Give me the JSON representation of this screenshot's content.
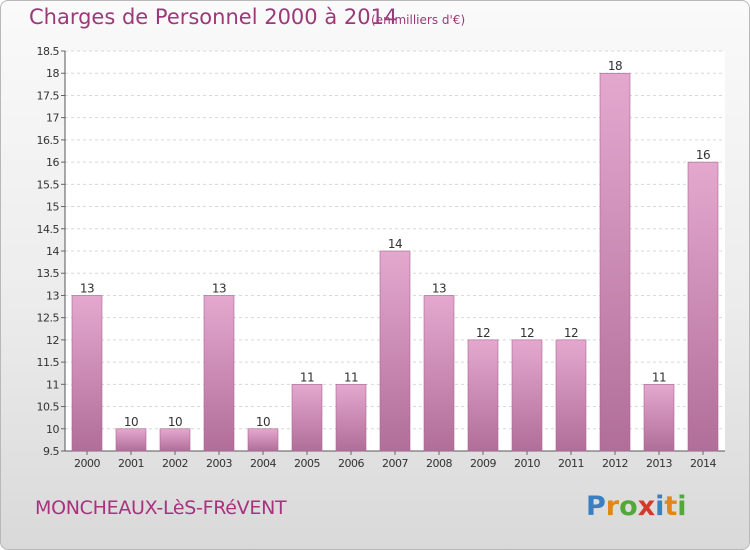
{
  "title": "Charges de Personnel 2000 à 2014",
  "subtitle": "(en milliers d'€)",
  "city": "MONCHEAUX-LèS-FRéVENT",
  "brand": {
    "text": "Proxiti",
    "colors": [
      "#3a7fc1",
      "#e2861a",
      "#52a83a",
      "#d23a2a",
      "#3a7fc1",
      "#e2861a",
      "#52a83a"
    ]
  },
  "colors": {
    "bar_light": "#e4a8cf",
    "bar_dark": "#b06e98",
    "title": "#9a3a78"
  },
  "chart_data": {
    "type": "bar",
    "categories": [
      "2000",
      "2001",
      "2002",
      "2003",
      "2004",
      "2005",
      "2006",
      "2007",
      "2008",
      "2009",
      "2010",
      "2011",
      "2012",
      "2013",
      "2014"
    ],
    "values": [
      13,
      10,
      10,
      13,
      10,
      11,
      11,
      14,
      13,
      12,
      12,
      12,
      18,
      11,
      16
    ],
    "data_labels": [
      "13",
      "10",
      "10",
      "13",
      "10",
      "11",
      "11",
      "14",
      "13",
      "12",
      "12",
      "12",
      "18",
      "11",
      "16"
    ],
    "ylim": [
      9.5,
      18.5
    ],
    "yticks": [
      "9.5",
      "10",
      "10.5",
      "11",
      "11.5",
      "12",
      "12.5",
      "13",
      "13.5",
      "14",
      "14.5",
      "15",
      "15.5",
      "16",
      "16.5",
      "17",
      "17.5",
      "18",
      "18.5"
    ],
    "grid": true
  }
}
